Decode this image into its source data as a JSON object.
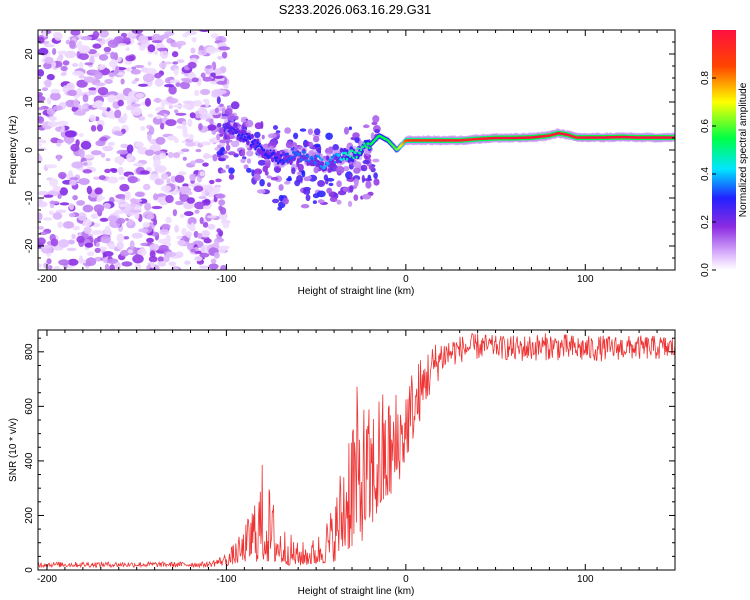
{
  "figure_title": "S233.2026.063.16.29.G31",
  "chart_data": [
    {
      "type": "heatmap",
      "title": "S233.2026.063.16.29.G31",
      "xlabel": "Height of straight line (km)",
      "ylabel": "Frequency (Hz)",
      "xlim": [
        -205,
        150
      ],
      "ylim": [
        -25,
        25
      ],
      "x_ticks": [
        -200,
        -100,
        0,
        100
      ],
      "y_ticks": [
        -20,
        -10,
        0,
        10,
        20
      ],
      "colorbar": {
        "label": "Normalized spectral amplitude",
        "range": [
          0,
          1
        ],
        "ticks": [
          0.0,
          0.2,
          0.4,
          0.6,
          0.8
        ],
        "colors": [
          "#ffffff",
          "#e6c8ff",
          "#8c2be2",
          "#2222ff",
          "#00e5ff",
          "#00ff44",
          "#ffff00",
          "#ff4400",
          "#ff1040"
        ]
      },
      "ridge": {
        "description": "Strong spectral line frequency vs height",
        "x": [
          -100,
          -90,
          -80,
          -70,
          -60,
          -50,
          -45,
          -40,
          -35,
          -30,
          -25,
          -20,
          -15,
          -10,
          -5,
          0,
          5,
          10,
          20,
          30,
          40,
          50,
          60,
          70,
          75,
          80,
          85,
          90,
          95,
          100,
          110,
          120,
          130,
          140,
          150
        ],
        "freq": [
          5,
          3,
          0,
          -2,
          -1,
          -2,
          -3,
          -2,
          -1,
          -1,
          0,
          1,
          3,
          2,
          0,
          2,
          2,
          2,
          2,
          2,
          2.3,
          2.5,
          2.5,
          2.6,
          2.8,
          3,
          3.5,
          3.2,
          2.6,
          2.6,
          2.6,
          2.7,
          2.6,
          2.6,
          2.6
        ],
        "amplitude": [
          0.25,
          0.3,
          0.3,
          0.3,
          0.35,
          0.35,
          0.4,
          0.35,
          0.45,
          0.5,
          0.5,
          0.55,
          0.55,
          0.55,
          0.6,
          0.85,
          0.9,
          0.9,
          0.95,
          0.95,
          0.95,
          1,
          1,
          1,
          1,
          0.95,
          1,
          1,
          0.95,
          1,
          1,
          1,
          1,
          1,
          1
        ]
      }
    },
    {
      "type": "line",
      "xlabel": "Height of straight line (km)",
      "ylabel": "SNR (10 * v/v)",
      "xlim": [
        -205,
        150
      ],
      "ylim": [
        0,
        880
      ],
      "x_ticks": [
        -200,
        -100,
        0,
        100
      ],
      "y_ticks": [
        0,
        200,
        400,
        600,
        800
      ],
      "series": [
        {
          "name": "SNR",
          "color": "#ee3333",
          "envelope_x": [
            -205,
            -110,
            -100,
            -90,
            -80,
            -70,
            -60,
            -50,
            -40,
            -35,
            -30,
            -25,
            -20,
            -15,
            -10,
            -5,
            0,
            5,
            10,
            15,
            20,
            30,
            40,
            50,
            60,
            80,
            100,
            120,
            150
          ],
          "envelope_low": [
            10,
            10,
            15,
            30,
            30,
            20,
            15,
            20,
            30,
            60,
            80,
            100,
            150,
            200,
            250,
            300,
            400,
            500,
            580,
            650,
            720,
            760,
            770,
            780,
            760,
            770,
            760,
            770,
            770
          ],
          "envelope_high": [
            30,
            30,
            60,
            150,
            400,
            180,
            100,
            120,
            250,
            450,
            700,
            650,
            600,
            680,
            650,
            680,
            720,
            760,
            800,
            830,
            850,
            860,
            870,
            860,
            860,
            870,
            860,
            860,
            860
          ]
        }
      ]
    }
  ]
}
